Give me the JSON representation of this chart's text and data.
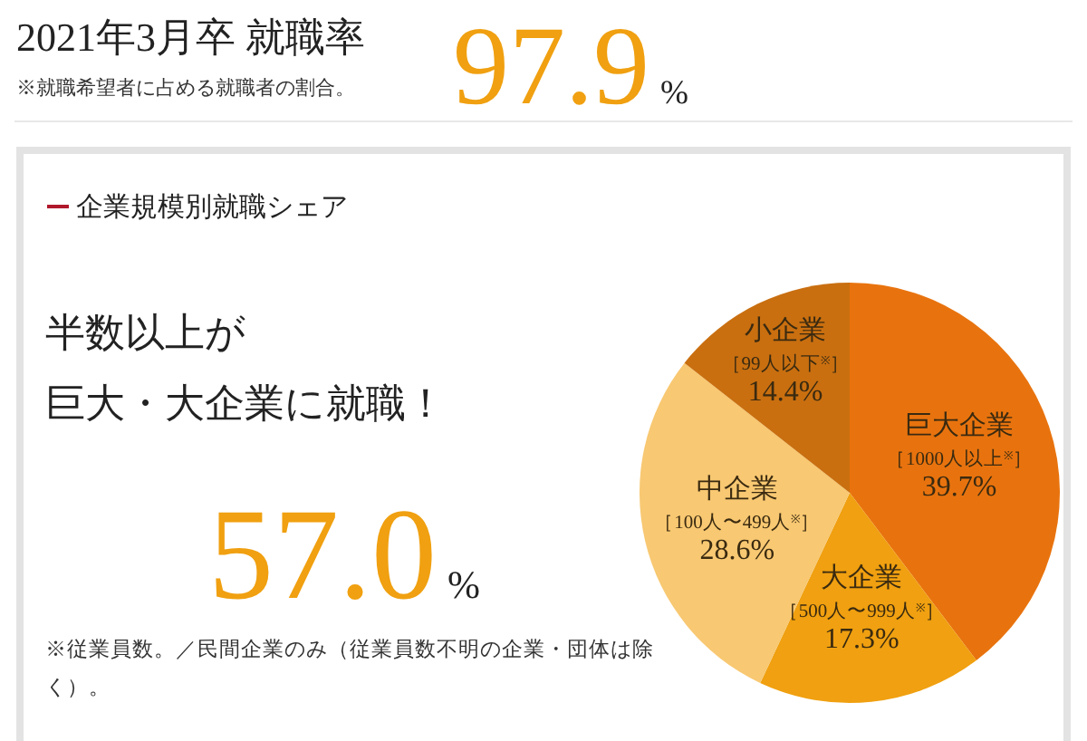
{
  "chart_data": {
    "type": "pie",
    "title": "企業規模別就職シェア",
    "categories": [
      "巨大企業［1000人以上$^{※}$］",
      "大企業［500人〜999人$^{※}$］",
      "中企業［100人〜499人$^{※}$］",
      "小企業［99人以下$^{※}$］"
    ],
    "values": [
      39.7,
      17.3,
      28.6,
      14.4
    ],
    "value_labels": [
      "39.7%",
      "17.3%",
      "28.6%",
      "14.4%"
    ],
    "colors": [
      "#e8730e",
      "#f0a010",
      "#f8c872",
      "#c96f10"
    ],
    "annotations": [
      "2021年3月卒 就職率",
      "※就職希望者に占める就職者の割合。",
      "97.9%",
      "半数以上が",
      "巨大・大企業に就職！",
      "57.0%",
      "※従業員数。／民間企業のみ（従業員数不明の企業・団体は除く）。"
    ]
  }
}
